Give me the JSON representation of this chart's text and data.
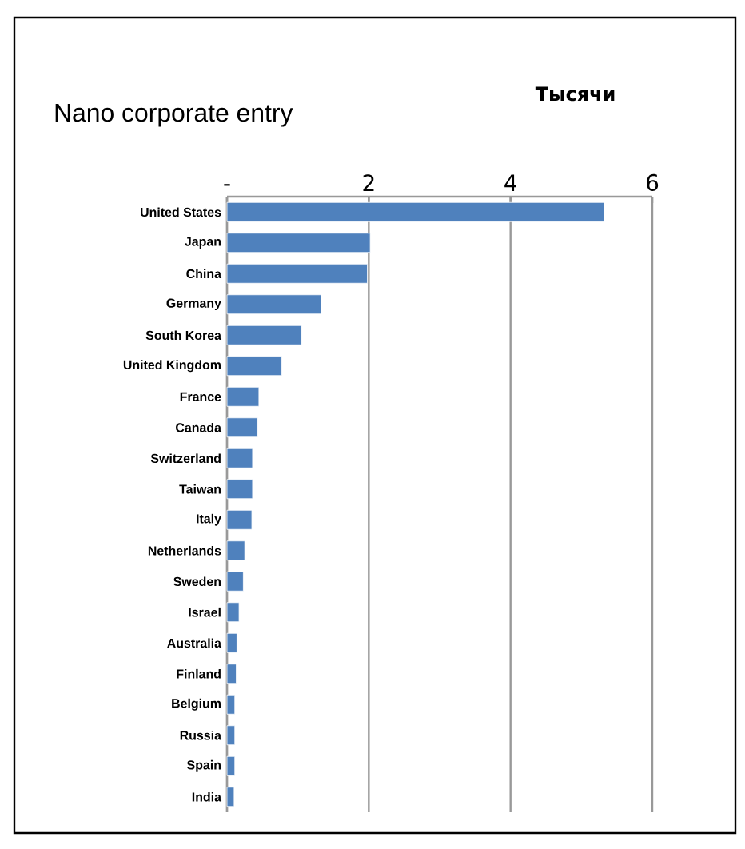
{
  "chart_data": {
    "type": "bar",
    "orientation": "horizontal",
    "title": "Nano corporate entry",
    "xlabel": "Тысячи",
    "categories": [
      "United States",
      "Japan",
      "China",
      "Germany",
      "South Korea",
      "United Kingdom",
      "France",
      "Canada",
      "Switzerland",
      "Taiwan",
      "Italy",
      "Netherlands",
      "Sweden",
      "Israel",
      "Australia",
      "Finland",
      "Belgium",
      "Russia",
      "Spain",
      "India"
    ],
    "values": [
      5.32,
      2.02,
      1.98,
      1.33,
      1.05,
      0.77,
      0.45,
      0.43,
      0.36,
      0.36,
      0.35,
      0.25,
      0.23,
      0.17,
      0.14,
      0.13,
      0.11,
      0.11,
      0.11,
      0.1
    ],
    "color": "#4f81bd",
    "xlim": [
      0,
      6
    ],
    "xticks": [
      {
        "value": 0,
        "label": "-"
      },
      2,
      4,
      6
    ],
    "grid": "x"
  }
}
